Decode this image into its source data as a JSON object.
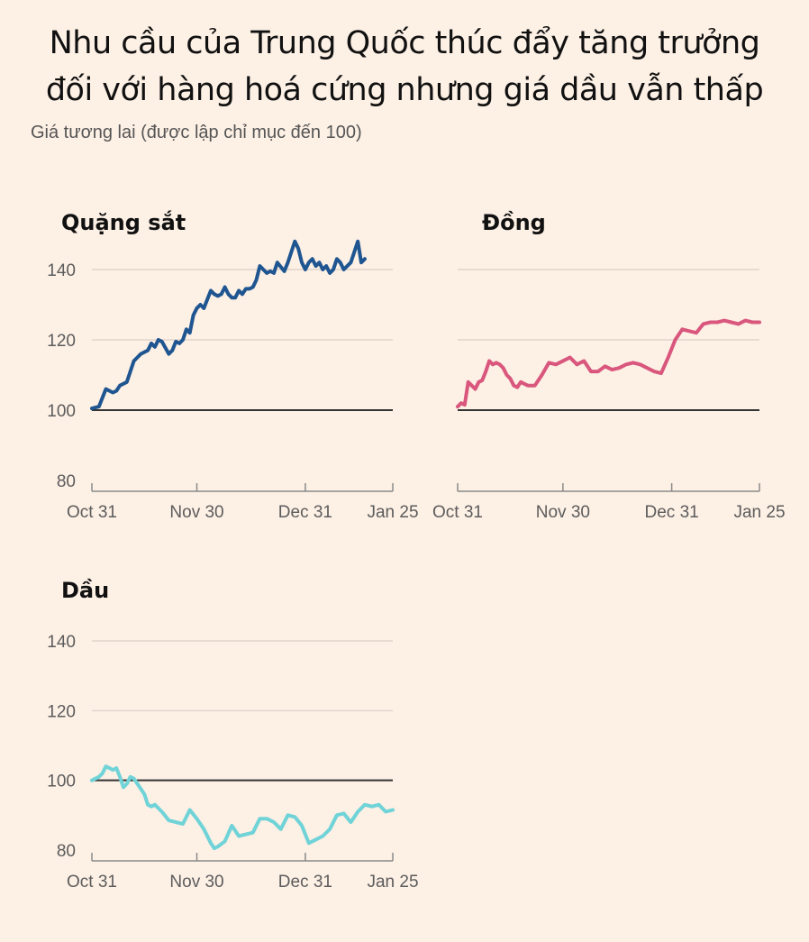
{
  "title_line1": "Nhu cầu của Trung Quốc thúc đẩy tăng trưởng",
  "title_line2": "đối với hàng hoá cứng nhưng giá dầu vẫn thấp",
  "subtitle": "Giá tương lai (được lập chỉ mục đến 100)",
  "colors": {
    "background": "#fdf0e5",
    "iron_ore": "#1f5590",
    "copper": "#d9577d",
    "oil": "#6fd3d8",
    "gridline": "#e1d6cc",
    "baseline": "#333333"
  },
  "chart_data": [
    {
      "type": "line",
      "title": "Quặng sắt",
      "color": "#1f5590",
      "ylim": [
        80,
        150
      ],
      "yticks": [
        80,
        100,
        120,
        140
      ],
      "y_tick_labels": [
        "80",
        "100",
        "120",
        "140"
      ],
      "baseline": 100,
      "x_tick_labels": [
        "Oct 31",
        "Nov 30",
        "Dec 31",
        "Jan 25"
      ],
      "x_tick_days": [
        0,
        30,
        61,
        86
      ],
      "x": [
        0,
        2,
        4,
        6,
        7,
        8,
        10,
        12,
        13,
        14,
        16,
        17,
        18,
        19,
        20,
        22,
        23,
        24,
        25,
        26,
        27,
        28,
        29,
        30,
        31,
        32,
        34,
        35,
        36,
        37,
        38,
        39,
        40,
        41,
        42,
        43,
        44,
        45,
        46,
        47,
        48,
        49,
        50,
        51,
        52,
        53,
        55,
        56,
        57,
        58,
        59,
        60,
        61,
        62,
        63,
        64,
        65,
        66,
        67,
        68,
        69,
        70,
        71,
        72,
        73,
        74,
        75,
        76,
        77,
        78
      ],
      "values": [
        100.5,
        101,
        106,
        105,
        105.5,
        107,
        108,
        114,
        115,
        116,
        117,
        119,
        118,
        120,
        119.5,
        116,
        117,
        119.5,
        119,
        120,
        123,
        122,
        127,
        129,
        130,
        129,
        134,
        133,
        132.5,
        133,
        135,
        133,
        132,
        132,
        134,
        133,
        134.5,
        134.5,
        135,
        137,
        141,
        140,
        139,
        139.5,
        139,
        142,
        139.5,
        142,
        145,
        148,
        146,
        142,
        140,
        142,
        143,
        141,
        142,
        140,
        141,
        139,
        140,
        143,
        142,
        140,
        141,
        142,
        145,
        148,
        142,
        143
      ],
      "series_note": ""
    },
    {
      "type": "line",
      "title": "Đồng",
      "color": "#d9577d",
      "ylim": [
        80,
        150
      ],
      "yticks": [
        80,
        100,
        120,
        140
      ],
      "baseline": 100,
      "x_tick_labels": [
        "Oct 31",
        "Nov 30",
        "Dec 31",
        "Jan 25"
      ],
      "x_tick_days": [
        0,
        30,
        61,
        86
      ],
      "x": [
        0,
        1,
        2,
        3,
        4,
        5,
        6,
        7,
        8,
        9,
        10,
        11,
        12,
        13,
        14,
        15,
        16,
        17,
        18,
        19,
        20,
        22,
        24,
        26,
        28,
        30,
        32,
        34,
        36,
        38,
        40,
        42,
        44,
        46,
        48,
        50,
        52,
        54,
        56,
        58,
        60,
        62,
        64,
        66,
        68,
        70,
        72,
        74,
        76,
        78,
        80,
        82,
        84,
        86
      ],
      "values": [
        101,
        102,
        101.5,
        108,
        107,
        106,
        108,
        108.5,
        111,
        114,
        113,
        113.5,
        113,
        112,
        110,
        109,
        107,
        106.5,
        108,
        107.5,
        107,
        107,
        110,
        113.5,
        113,
        114,
        115,
        113,
        114,
        111,
        111,
        112.5,
        111.5,
        112,
        113,
        113.5,
        113,
        112,
        111,
        110.5,
        115,
        120,
        123,
        122.5,
        122,
        124.5,
        125,
        125,
        125.5,
        125,
        124.5,
        125.5,
        125,
        125
      ]
    },
    {
      "type": "line",
      "title": "Dầu",
      "color": "#6fd3d8",
      "ylim": [
        80,
        150
      ],
      "yticks": [
        80,
        100,
        120,
        140
      ],
      "baseline": 100,
      "x_tick_labels": [
        "Oct 31",
        "Nov 30",
        "Dec 31",
        "Jan 25"
      ],
      "x_tick_days": [
        0,
        30,
        61,
        86
      ],
      "x": [
        0,
        2,
        3,
        4,
        5,
        6,
        7,
        8,
        9,
        10,
        11,
        12,
        13,
        14,
        15,
        16,
        17,
        18,
        20,
        22,
        24,
        26,
        28,
        30,
        32,
        34,
        35,
        36,
        38,
        40,
        42,
        44,
        46,
        48,
        50,
        52,
        54,
        56,
        58,
        60,
        62,
        64,
        66,
        68,
        70,
        72,
        74,
        76,
        78,
        80,
        82,
        84,
        86
      ],
      "values": [
        100,
        101,
        102,
        104,
        103.5,
        103,
        103.5,
        101,
        98,
        99,
        101,
        100.5,
        99,
        97.5,
        96,
        93,
        92.5,
        93,
        91,
        88.5,
        88,
        87.5,
        91.5,
        89,
        86,
        82,
        80.5,
        81,
        82.5,
        87,
        84,
        84.5,
        85,
        89,
        89,
        88,
        86,
        90,
        89.5,
        87,
        82,
        83,
        84,
        86,
        90,
        90.5,
        88,
        91,
        93,
        92.5,
        93,
        91,
        91.5
      ]
    }
  ]
}
